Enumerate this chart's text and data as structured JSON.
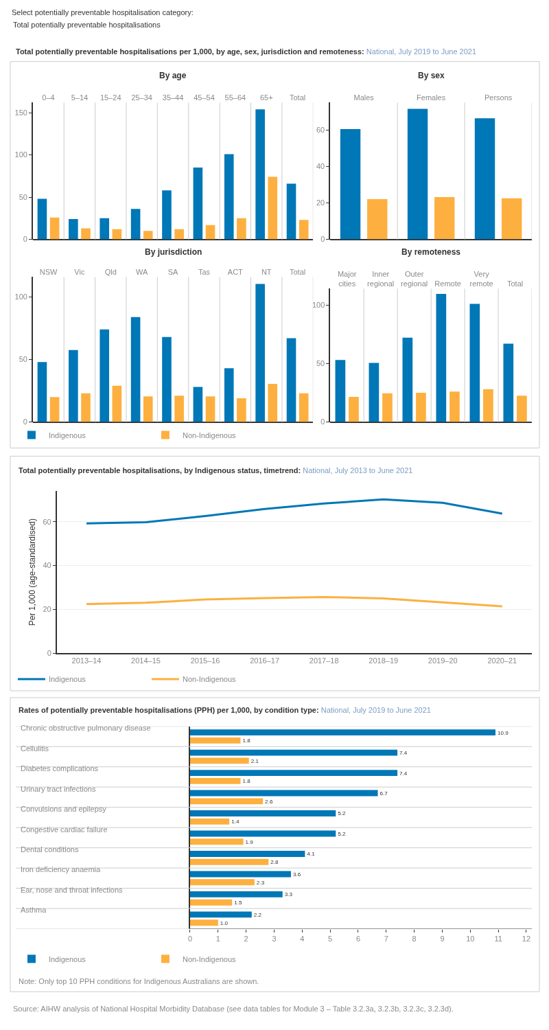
{
  "chart_data": [
    {
      "type": "other",
      "title": "Select potentially preventable hospitalisation category:",
      "subtitle": "Total potentially preventable hospitalisations"
    },
    {
      "type": "other",
      "title": "Total potentially preventable hospitalisations per 1,000, by age, sex, jurisdiction and remoteness:",
      "subtitle": "National, July 2019 to June 2021"
    },
    {
      "type": "bar",
      "title": "By age",
      "categories": [
        "0–4",
        "5–14",
        "15–24",
        "25–34",
        "35–44",
        "45–54",
        "55–64",
        "65+",
        "Total"
      ],
      "series": [
        {
          "color": "#0077b6",
          "values": [
            48,
            24,
            25,
            36,
            58,
            85,
            101,
            154,
            66
          ]
        },
        {
          "color": "#fdb03f",
          "values": [
            26,
            13,
            12,
            10,
            12,
            17,
            25,
            74,
            23
          ]
        }
      ],
      "ylim": [
        0,
        162
      ],
      "yticks": [
        0,
        50,
        100,
        150
      ]
    },
    {
      "type": "bar",
      "title": "By sex",
      "categories": [
        "Males",
        "Females",
        "Persons"
      ],
      "series": [
        {
          "color": "#0077b6",
          "values": [
            60.5,
            71.6,
            66.4
          ]
        },
        {
          "color": "#fdb03f",
          "values": [
            22.1,
            23.2,
            22.5
          ]
        }
      ],
      "ylim": [
        0,
        75
      ],
      "yticks": [
        0,
        20,
        40,
        60
      ]
    },
    {
      "type": "bar",
      "title": "By jurisdiction",
      "categories": [
        "NSW",
        "Vic",
        "Qld",
        "WA",
        "SA",
        "Tas",
        "ACT",
        "NT",
        "Total"
      ],
      "series": [
        {
          "name": "Indigenous",
          "color": "#0077b6",
          "values": [
            48,
            57.5,
            74,
            84,
            68,
            28,
            43,
            110.5,
            67
          ]
        },
        {
          "name": "Non-Indigenous",
          "color": "#fdb03f",
          "values": [
            20,
            23,
            29,
            20.5,
            21,
            20.5,
            19,
            30.5,
            23
          ]
        }
      ],
      "ylim": [
        0,
        116
      ],
      "yticks": [
        0,
        50,
        100
      ],
      "legend": "bottom"
    },
    {
      "type": "bar",
      "title": "By remoteness",
      "categories": [
        "Major cities",
        "Inner regional",
        "Outer regional",
        "Remote",
        "Very remote",
        "Total"
      ],
      "series": [
        {
          "color": "#0077b6",
          "values": [
            53,
            50.5,
            72,
            109.5,
            101,
            67
          ]
        },
        {
          "color": "#fdb03f",
          "values": [
            21.5,
            24.5,
            25,
            26,
            28,
            22.5
          ]
        }
      ],
      "ylim": [
        0,
        114
      ],
      "yticks": [
        0,
        50,
        100
      ]
    },
    {
      "type": "line",
      "title": "Total potentially preventable hospitalisations, by Indigenous status, timetrend:",
      "subtitle": "National, July 2013 to June 2021",
      "ylabel": "Per 1,000 (age-standardised)",
      "categories": [
        "2013–14",
        "2014–15",
        "2015–16",
        "2016–17",
        "2017–18",
        "2018–19",
        "2019–20",
        "2020–21"
      ],
      "series": [
        {
          "name": "Indigenous",
          "color": "#0077b6",
          "values": [
            59.2,
            59.8,
            62.6,
            65.8,
            68.3,
            70.2,
            68.6,
            63.7
          ]
        },
        {
          "name": "Non-Indigenous",
          "color": "#fdb03f",
          "values": [
            22.4,
            23.0,
            24.5,
            25.1,
            25.6,
            25.0,
            23.2,
            21.4
          ]
        }
      ],
      "ylim": [
        0,
        74
      ],
      "yticks": [
        0,
        20,
        40,
        60
      ],
      "grid": "y",
      "legend": "bottom"
    },
    {
      "type": "bar",
      "orientation": "horizontal",
      "title": "Rates of potentially preventable hospitalisations (PPH) per 1,000, by condition type:",
      "subtitle": "National, July 2019 to June 2021",
      "categories": [
        "Chronic obstructive pulmonary disease",
        "Cellulitis",
        "Diabetes complications",
        "Urinary tract infections",
        "Convulsions and epilepsy",
        "Congestive cardiac failure",
        "Dental conditions",
        "Iron deficiency anaemia",
        "Ear, nose and throat infections",
        "Asthma"
      ],
      "series": [
        {
          "name": "Indigenous",
          "color": "#0077b6",
          "values": [
            10.9,
            7.4,
            7.4,
            6.7,
            5.2,
            5.2,
            4.1,
            3.6,
            3.3,
            2.2
          ],
          "value_labels": [
            "10.9",
            "7.4",
            "7.4",
            "6.7",
            "5.2",
            "5.2",
            "4.1",
            "3.6",
            "3.3",
            "2.2"
          ]
        },
        {
          "name": "Non-Indigenous",
          "color": "#fdb03f",
          "values": [
            1.8,
            2.1,
            1.8,
            2.6,
            1.4,
            1.9,
            2.8,
            2.3,
            1.5,
            1.0
          ],
          "value_labels": [
            "1.8",
            "2.1",
            "1.8",
            "2.6",
            "1.4",
            "1.9",
            "2.8",
            "2.3",
            "1.5",
            "1.0"
          ]
        }
      ],
      "xlim": [
        0,
        12.2
      ],
      "xticks": [
        0,
        1,
        2,
        3,
        4,
        5,
        6,
        7,
        8,
        9,
        10,
        11,
        12
      ],
      "legend": "bottom",
      "annotations": [
        "Note: Only top 10 PPH conditions for Indigenous Australians are shown.",
        "Source: AIHW analysis of National Hospital Morbidity Database (see data tables for Module 3 – Table 3.2.3a, 3.2.3b, 3.2.3c, 3.2.3d)."
      ]
    }
  ]
}
